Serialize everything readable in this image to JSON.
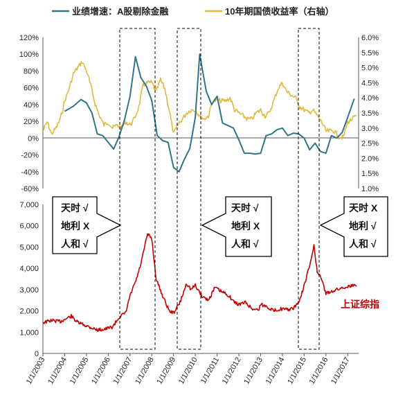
{
  "colors": {
    "earnings": "#2e7588",
    "bond": "#e3b73c",
    "index": "#c00000",
    "axis": "#555555",
    "box": "#000000"
  },
  "legend": {
    "earnings_label": "业绩增速：A股剔除金融",
    "bond_label": "10年期国债收益率（右轴）"
  },
  "index_label": "上证综指",
  "annotations": [
    {
      "lines": [
        "天时 √",
        "地利 X",
        "人和 √"
      ],
      "arrow": "right"
    },
    {
      "lines": [
        "天时 √",
        "地利 X",
        "人和 √"
      ],
      "arrow": "left"
    },
    {
      "lines": [
        "天时 X",
        "地利 √",
        "人和 √"
      ],
      "arrow": "left"
    }
  ],
  "chart_data": [
    {
      "type": "line",
      "title": "",
      "x_axis": "time",
      "y_left_ticks": [
        "120%",
        "100%",
        "80%",
        "60%",
        "40%",
        "20%",
        "0%",
        "-20%",
        "-40%",
        "-60%"
      ],
      "y_right_ticks": [
        "6.0%",
        "5.5%",
        "5.0%",
        "4.5%",
        "4.0%",
        "3.5%",
        "3.0%",
        "2.5%",
        "2.0%",
        "1.5%",
        "1.0%"
      ],
      "ylim_left": [
        -60,
        120
      ],
      "ylim_right": [
        1.0,
        6.0
      ],
      "xlim": [
        2003.0,
        2017.5
      ],
      "series": [
        {
          "name": "业绩增速：A股剔除金融",
          "axis": "left",
          "points": [
            [
              2004.0,
              32
            ],
            [
              2004.4,
              38
            ],
            [
              2004.75,
              46
            ],
            [
              2005.0,
              42
            ],
            [
              2005.25,
              30
            ],
            [
              2005.5,
              5
            ],
            [
              2005.75,
              3
            ],
            [
              2006.0,
              -5
            ],
            [
              2006.25,
              -13
            ],
            [
              2006.5,
              2
            ],
            [
              2006.75,
              22
            ],
            [
              2007.0,
              50
            ],
            [
              2007.25,
              97
            ],
            [
              2007.5,
              72
            ],
            [
              2007.75,
              62
            ],
            [
              2008.0,
              45
            ],
            [
              2008.25,
              3
            ],
            [
              2008.5,
              -3
            ],
            [
              2008.75,
              -5
            ],
            [
              2009.0,
              -35
            ],
            [
              2009.25,
              -40
            ],
            [
              2009.5,
              -25
            ],
            [
              2009.75,
              -12
            ],
            [
              2010.0,
              25
            ],
            [
              2010.2,
              100
            ],
            [
              2010.5,
              56
            ],
            [
              2010.75,
              40
            ],
            [
              2011.0,
              50
            ],
            [
              2011.25,
              18
            ],
            [
              2011.5,
              15
            ],
            [
              2011.75,
              12
            ],
            [
              2012.0,
              -2
            ],
            [
              2012.25,
              -18
            ],
            [
              2012.5,
              -18
            ],
            [
              2012.75,
              -19
            ],
            [
              2013.0,
              -18
            ],
            [
              2013.25,
              3
            ],
            [
              2013.5,
              5
            ],
            [
              2013.75,
              10
            ],
            [
              2014.0,
              12
            ],
            [
              2014.25,
              3
            ],
            [
              2014.5,
              6
            ],
            [
              2014.75,
              5
            ],
            [
              2015.0,
              0
            ],
            [
              2015.25,
              -14
            ],
            [
              2015.5,
              -6
            ],
            [
              2015.75,
              -16
            ],
            [
              2016.0,
              -18
            ],
            [
              2016.25,
              3
            ],
            [
              2016.5,
              0
            ],
            [
              2016.75,
              7
            ],
            [
              2017.0,
              25
            ],
            [
              2017.3,
              47
            ]
          ]
        },
        {
          "name": "10年期国债收益率（右轴）",
          "axis": "right",
          "points": [
            [
              2003.0,
              2.9
            ],
            [
              2003.2,
              3.2
            ],
            [
              2003.4,
              2.8
            ],
            [
              2003.6,
              3.0
            ],
            [
              2003.8,
              3.3
            ],
            [
              2004.0,
              3.9
            ],
            [
              2004.2,
              4.3
            ],
            [
              2004.4,
              4.8
            ],
            [
              2004.6,
              5.0
            ],
            [
              2004.8,
              5.2
            ],
            [
              2005.0,
              4.9
            ],
            [
              2005.2,
              4.4
            ],
            [
              2005.4,
              3.8
            ],
            [
              2005.6,
              3.4
            ],
            [
              2005.8,
              3.1
            ],
            [
              2006.0,
              3.2
            ],
            [
              2006.2,
              3.0
            ],
            [
              2006.4,
              3.1
            ],
            [
              2006.6,
              3.0
            ],
            [
              2006.8,
              3.2
            ],
            [
              2007.0,
              3.1
            ],
            [
              2007.2,
              3.3
            ],
            [
              2007.4,
              3.7
            ],
            [
              2007.6,
              4.4
            ],
            [
              2007.8,
              4.5
            ],
            [
              2008.0,
              4.5
            ],
            [
              2008.2,
              4.2
            ],
            [
              2008.4,
              4.6
            ],
            [
              2008.6,
              4.3
            ],
            [
              2008.8,
              3.6
            ],
            [
              2009.0,
              2.8
            ],
            [
              2009.2,
              3.1
            ],
            [
              2009.4,
              3.3
            ],
            [
              2009.6,
              3.5
            ],
            [
              2009.8,
              3.6
            ],
            [
              2010.0,
              3.6
            ],
            [
              2010.2,
              3.4
            ],
            [
              2010.4,
              3.3
            ],
            [
              2010.6,
              3.4
            ],
            [
              2010.8,
              3.9
            ],
            [
              2011.0,
              3.9
            ],
            [
              2011.2,
              3.9
            ],
            [
              2011.4,
              3.9
            ],
            [
              2011.6,
              4.0
            ],
            [
              2011.8,
              3.6
            ],
            [
              2012.0,
              3.5
            ],
            [
              2012.2,
              3.4
            ],
            [
              2012.4,
              3.3
            ],
            [
              2012.6,
              3.3
            ],
            [
              2012.8,
              3.5
            ],
            [
              2013.0,
              3.6
            ],
            [
              2013.2,
              3.4
            ],
            [
              2013.4,
              3.5
            ],
            [
              2013.6,
              3.9
            ],
            [
              2013.8,
              4.3
            ],
            [
              2014.0,
              4.5
            ],
            [
              2014.2,
              4.2
            ],
            [
              2014.4,
              4.1
            ],
            [
              2014.6,
              4.0
            ],
            [
              2014.8,
              3.7
            ],
            [
              2015.0,
              3.6
            ],
            [
              2015.2,
              3.5
            ],
            [
              2015.4,
              3.6
            ],
            [
              2015.6,
              3.4
            ],
            [
              2015.8,
              3.2
            ],
            [
              2016.0,
              2.9
            ],
            [
              2016.2,
              2.9
            ],
            [
              2016.4,
              2.9
            ],
            [
              2016.6,
              2.7
            ],
            [
              2016.8,
              2.7
            ],
            [
              2017.0,
              3.2
            ],
            [
              2017.2,
              3.3
            ],
            [
              2017.4,
              3.4
            ]
          ]
        }
      ]
    },
    {
      "type": "line",
      "title": "",
      "y_ticks": [
        "7,000",
        "6,000",
        "5,000",
        "4,000",
        "3,000",
        "2,000",
        "1,000",
        "0"
      ],
      "ylim": [
        0,
        7000
      ],
      "xlim": [
        2003.0,
        2017.5
      ],
      "x_ticks": [
        "1/1/2003",
        "1/1/2004",
        "1/1/2005",
        "1/1/2006",
        "1/1/2007",
        "1/1/2008",
        "1/1/2009",
        "1/1/2010",
        "1/1/2011",
        "1/1/2012",
        "1/1/2013",
        "1/1/2014",
        "1/1/2015",
        "1/1/2016",
        "1/1/2017"
      ],
      "series": [
        {
          "name": "上证综指",
          "points": [
            [
              2003.0,
              1450
            ],
            [
              2003.4,
              1550
            ],
            [
              2003.8,
              1500
            ],
            [
              2004.0,
              1600
            ],
            [
              2004.3,
              1750
            ],
            [
              2004.6,
              1450
            ],
            [
              2005.0,
              1300
            ],
            [
              2005.5,
              1100
            ],
            [
              2005.9,
              1150
            ],
            [
              2006.2,
              1250
            ],
            [
              2006.5,
              1700
            ],
            [
              2006.8,
              1900
            ],
            [
              2007.0,
              2700
            ],
            [
              2007.3,
              3500
            ],
            [
              2007.5,
              4200
            ],
            [
              2007.8,
              5600
            ],
            [
              2008.0,
              5400
            ],
            [
              2008.2,
              3500
            ],
            [
              2008.5,
              2700
            ],
            [
              2008.8,
              2000
            ],
            [
              2009.0,
              1900
            ],
            [
              2009.3,
              2400
            ],
            [
              2009.6,
              3300
            ],
            [
              2009.8,
              3000
            ],
            [
              2010.0,
              3200
            ],
            [
              2010.3,
              2700
            ],
            [
              2010.6,
              2500
            ],
            [
              2010.9,
              3100
            ],
            [
              2011.2,
              2900
            ],
            [
              2011.5,
              2750
            ],
            [
              2011.8,
              2400
            ],
            [
              2012.0,
              2300
            ],
            [
              2012.3,
              2400
            ],
            [
              2012.6,
              2100
            ],
            [
              2012.9,
              2050
            ],
            [
              2013.0,
              2300
            ],
            [
              2013.3,
              2200
            ],
            [
              2013.6,
              2000
            ],
            [
              2013.9,
              2100
            ],
            [
              2014.2,
              2050
            ],
            [
              2014.5,
              2100
            ],
            [
              2014.8,
              2500
            ],
            [
              2015.0,
              3200
            ],
            [
              2015.3,
              4300
            ],
            [
              2015.45,
              5100
            ],
            [
              2015.6,
              3800
            ],
            [
              2015.8,
              3500
            ],
            [
              2016.0,
              2800
            ],
            [
              2016.2,
              2900
            ],
            [
              2016.5,
              3000
            ],
            [
              2016.8,
              3100
            ],
            [
              2017.0,
              3150
            ],
            [
              2017.3,
              3200
            ],
            [
              2017.4,
              3150
            ]
          ]
        }
      ]
    }
  ]
}
